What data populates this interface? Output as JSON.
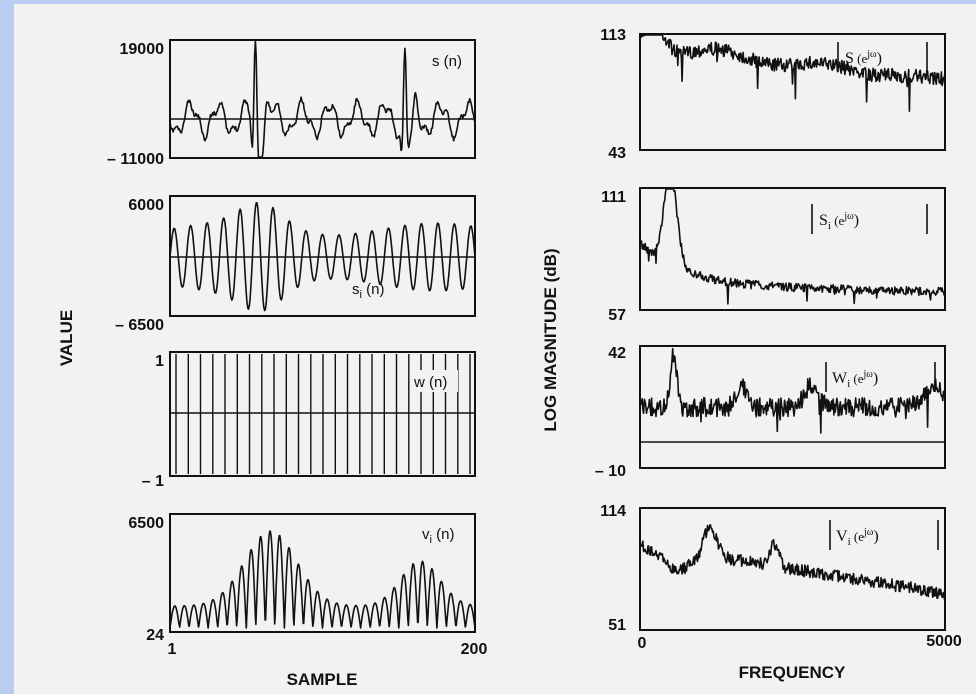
{
  "chart_data": [
    {
      "type": "line",
      "panel": "left-1",
      "label": "s (n)",
      "y_range": [
        -11000,
        19000
      ],
      "x_range": [
        1,
        200
      ],
      "tick_top": "19000",
      "tick_bottom": "– 11000",
      "waveform": "speech segment with two large pitch spikes"
    },
    {
      "type": "line",
      "panel": "left-2",
      "label": "s_i (n)",
      "label_main": "s",
      "label_sub": "i",
      "label_tail": " (n)",
      "y_range": [
        -6500,
        6000
      ],
      "x_range": [
        1,
        200
      ],
      "tick_top": "6000",
      "tick_bottom": "– 6500",
      "waveform": "quasi-periodic oscillation"
    },
    {
      "type": "line",
      "panel": "left-3",
      "label": "w (n)",
      "y_range": [
        -1,
        1
      ],
      "x_range": [
        1,
        200
      ],
      "tick_top": "1",
      "tick_bottom": "– 1",
      "waveform": "impulse train, period ≈ 8 samples"
    },
    {
      "type": "line",
      "panel": "left-4",
      "label": "v_i (n)",
      "label_main": "v",
      "label_sub": "i",
      "label_tail": " (n)",
      "y_range": [
        24,
        6500
      ],
      "x_range": [
        1,
        200
      ],
      "tick_top": "6500",
      "tick_bottom": "24",
      "waveform": "rectified modulated oscillation"
    },
    {
      "type": "line",
      "panel": "right-1",
      "label": "|S (e jω)|",
      "label_main": "S",
      "label_tail": " (e",
      "label_sup": "jω",
      "label_close": ")",
      "y_range": [
        43,
        113
      ],
      "x_range": [
        0,
        5000
      ],
      "tick_top": "113",
      "tick_bottom": "43"
    },
    {
      "type": "line",
      "panel": "right-2",
      "label": "|S_i (e jω)|",
      "label_main": "S",
      "label_sub": "i",
      "label_tail": " (e",
      "label_sup": "jω",
      "label_close": ")",
      "y_range": [
        57,
        111
      ],
      "x_range": [
        0,
        5000
      ],
      "tick_top": "111",
      "tick_bottom": "57"
    },
    {
      "type": "line",
      "panel": "right-3",
      "label": "|W_i (e jω)|",
      "label_main": "W",
      "label_sub": "i",
      "label_tail": " (e",
      "label_sup": "jω",
      "label_close": ")",
      "y_range": [
        -10,
        42
      ],
      "x_range": [
        0,
        5000
      ],
      "tick_top": "42",
      "tick_bottom": "– 10"
    },
    {
      "type": "line",
      "panel": "right-4",
      "label": "|V_i (e jω)|",
      "label_main": "V",
      "label_sub": "i",
      "label_tail": " (e",
      "label_sup": "jω",
      "label_close": ")",
      "y_range": [
        51,
        114
      ],
      "x_range": [
        0,
        5000
      ],
      "tick_top": "114",
      "tick_bottom": "51"
    }
  ],
  "axes": {
    "left_ylabel": "VALUE",
    "left_xlabel": "SAMPLE",
    "left_x_start": "1",
    "left_x_end": "200",
    "right_ylabel": "LOG MAGNITUDE (dB)",
    "right_xlabel": "FREQUENCY",
    "right_x_start": "0",
    "right_x_end": "5000"
  },
  "colors": {
    "background": "#b9cdf2",
    "paper": "#f2f2f0",
    "ink": "#111111"
  }
}
